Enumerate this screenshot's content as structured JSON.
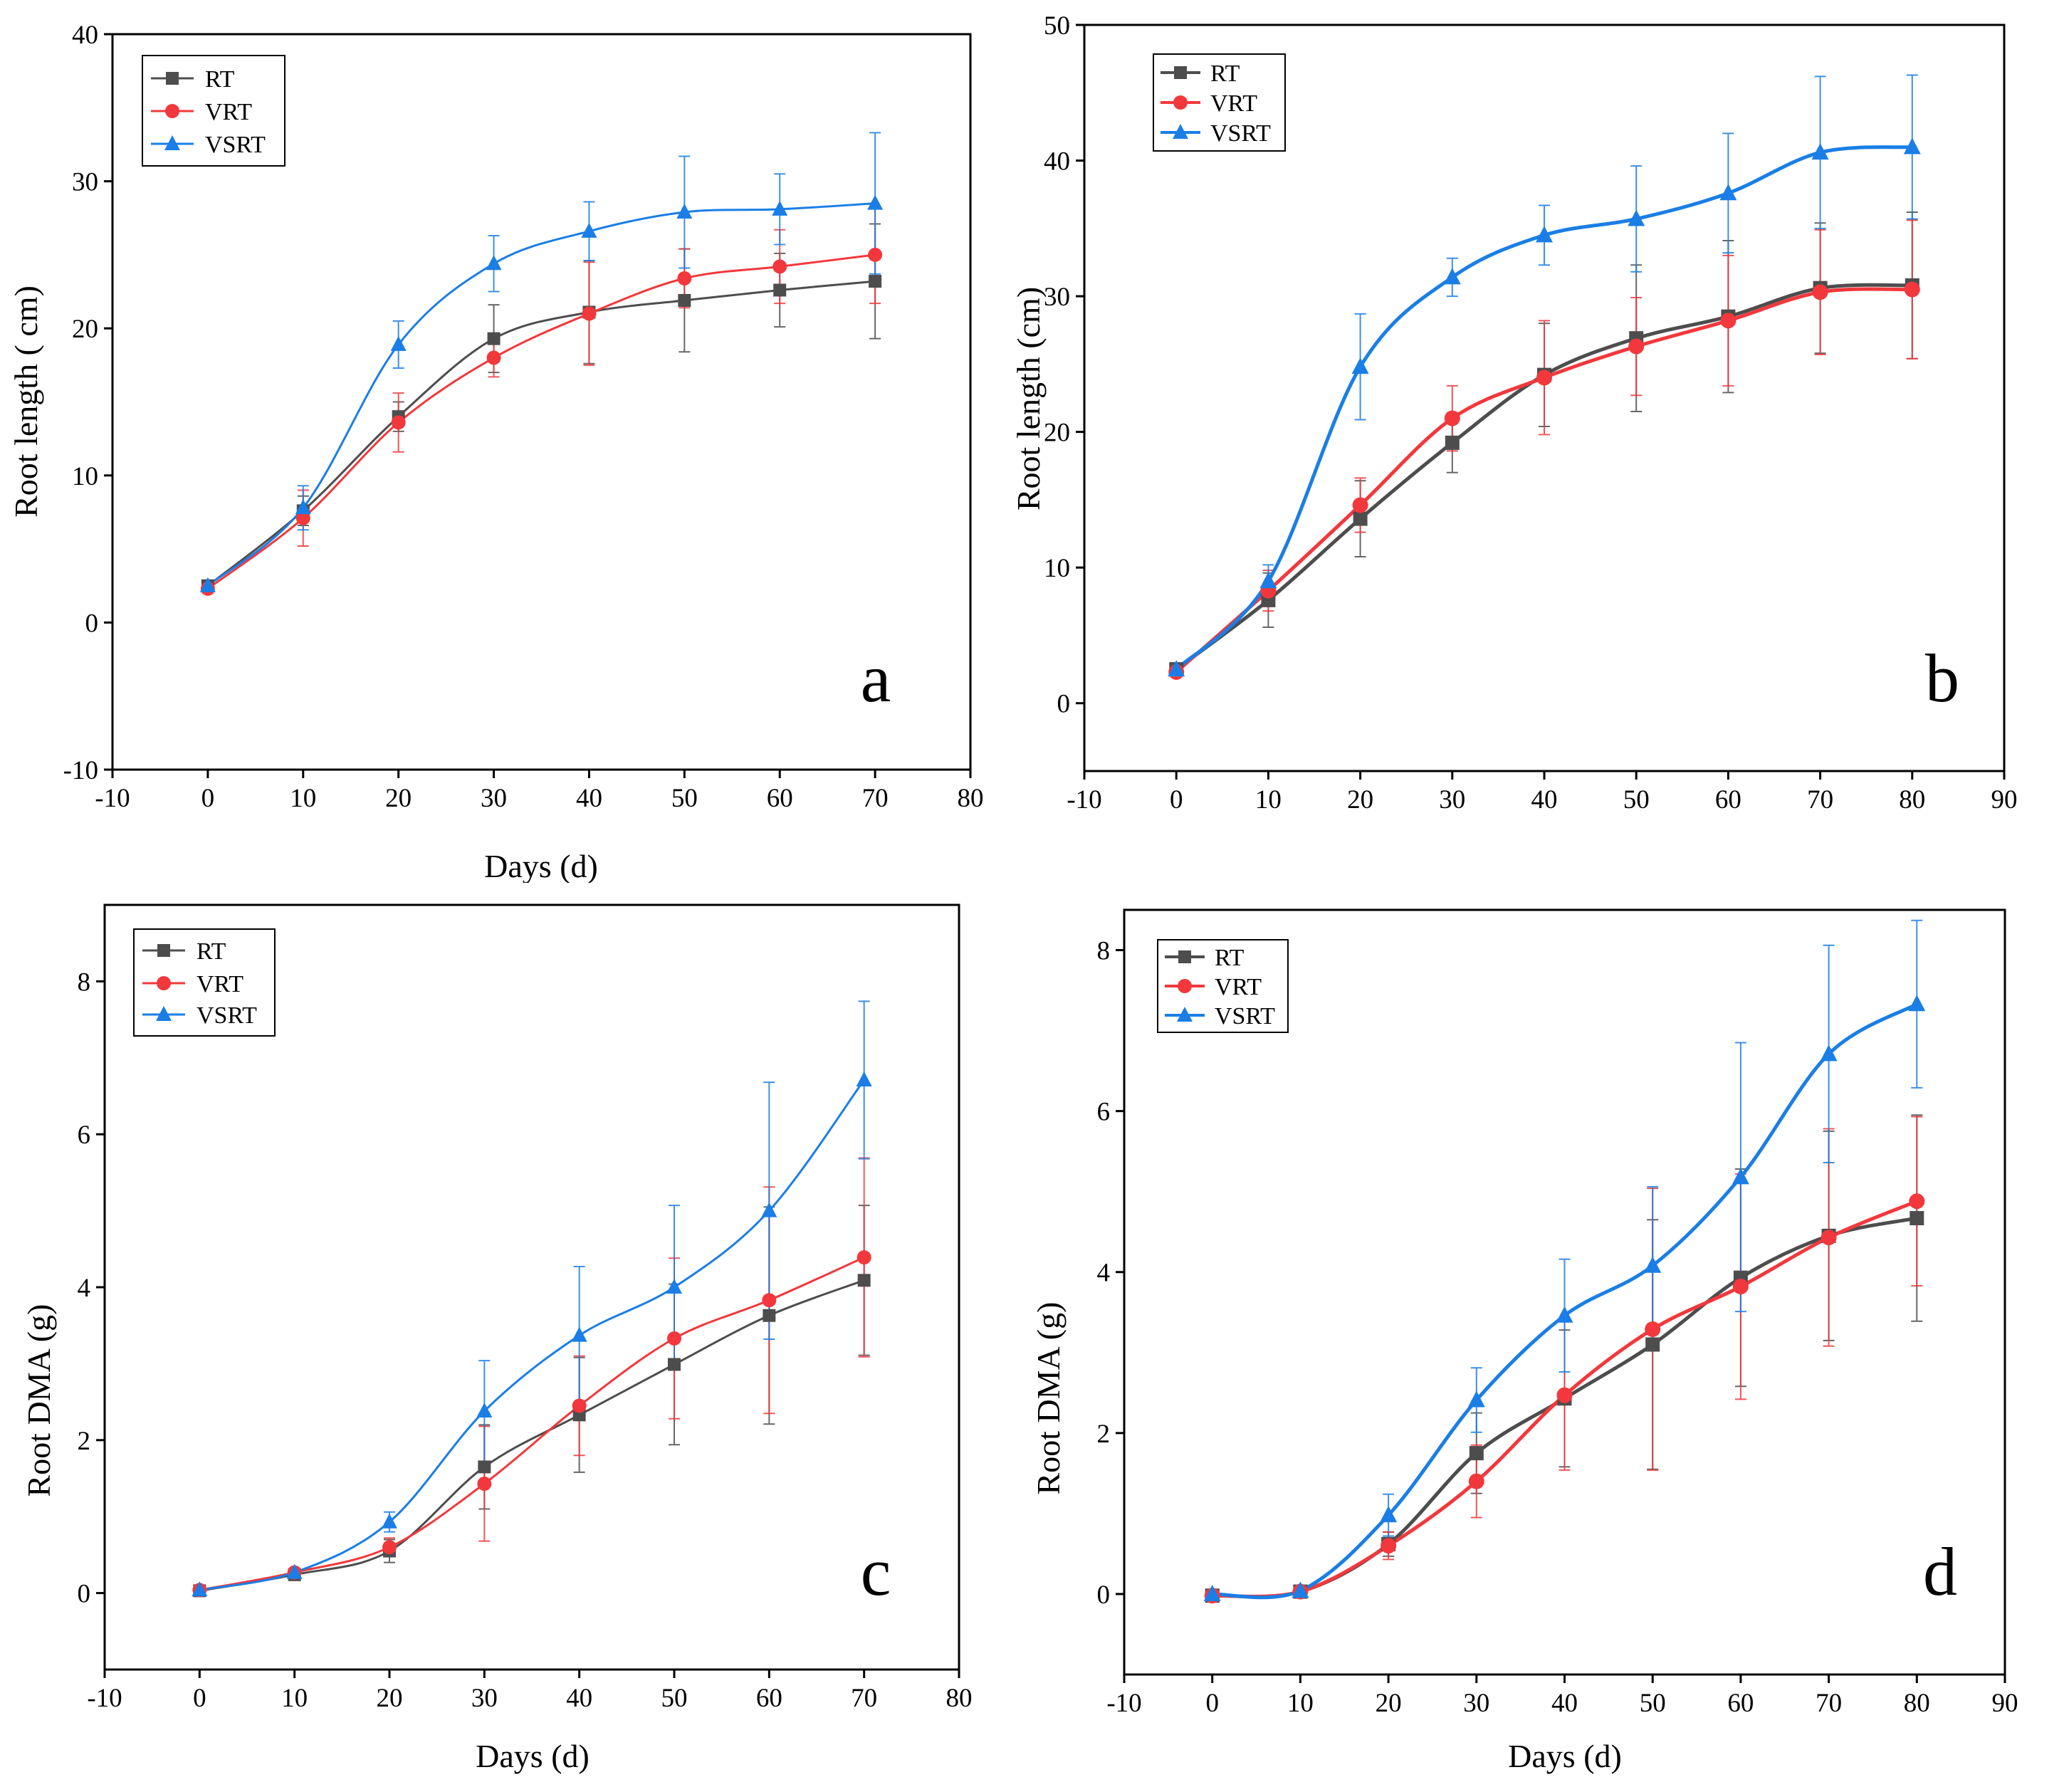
{
  "colors": {
    "RT": "#4d4d4d",
    "VRT": "#f2383c",
    "VSRT": "#1a7ee6"
  },
  "chart_data": [
    {
      "type": "line",
      "panel": "a",
      "xlabel": "Days (d)",
      "ylabel": "Root length ( cm)",
      "xlim": [
        -10,
        80
      ],
      "ylim": [
        -10,
        40
      ],
      "xticks": [
        -10,
        0,
        10,
        20,
        30,
        40,
        50,
        60,
        70,
        80
      ],
      "yticks": [
        -10,
        0,
        10,
        20,
        30,
        40
      ],
      "legend": [
        "RT",
        "VRT",
        "VSRT"
      ],
      "legend_position": "top-left",
      "x": [
        0,
        10,
        20,
        30,
        40,
        50,
        60,
        70
      ],
      "series": [
        {
          "name": "RT",
          "values": [
            2.5,
            7.6,
            14.0,
            19.3,
            21.1,
            21.9,
            22.6,
            23.2
          ],
          "errors": [
            0.3,
            1.0,
            1.0,
            2.3,
            3.5,
            3.5,
            2.5,
            3.9
          ]
        },
        {
          "name": "VRT",
          "values": [
            2.3,
            7.1,
            13.6,
            18.0,
            21.0,
            23.4,
            24.2,
            25.0
          ],
          "errors": [
            0.3,
            1.9,
            2.0,
            1.3,
            3.5,
            2.0,
            2.5,
            3.3
          ]
        },
        {
          "name": "VSRT",
          "values": [
            2.5,
            7.8,
            18.9,
            24.4,
            26.6,
            27.9,
            28.1,
            28.5
          ],
          "errors": [
            0.3,
            1.5,
            1.6,
            1.9,
            2.0,
            3.8,
            2.4,
            4.8
          ]
        }
      ]
    },
    {
      "type": "line",
      "panel": "b",
      "xlabel": "",
      "ylabel": "Root length (cm)",
      "xlim": [
        -10,
        90
      ],
      "ylim": [
        -5,
        50
      ],
      "xticks": [
        -10,
        0,
        10,
        20,
        30,
        40,
        50,
        60,
        70,
        80,
        90
      ],
      "yticks": [
        0,
        10,
        20,
        30,
        40,
        50
      ],
      "legend": [
        "RT",
        "VRT",
        "VSRT"
      ],
      "legend_position": "top-left",
      "x": [
        0,
        10,
        20,
        30,
        40,
        50,
        60,
        70,
        80
      ],
      "series": [
        {
          "name": "RT",
          "values": [
            2.5,
            7.6,
            13.6,
            19.2,
            24.2,
            26.9,
            28.5,
            30.6,
            30.8
          ],
          "errors": [
            0.3,
            2.0,
            2.8,
            2.2,
            3.8,
            5.4,
            5.6,
            4.8,
            5.4
          ]
        },
        {
          "name": "VRT",
          "values": [
            2.3,
            8.3,
            14.6,
            21.0,
            24.0,
            26.3,
            28.2,
            30.3,
            30.5
          ],
          "errors": [
            0.3,
            1.5,
            2.0,
            2.4,
            4.2,
            3.6,
            4.8,
            4.6,
            5.1
          ]
        },
        {
          "name": "VSRT",
          "values": [
            2.5,
            9.0,
            24.8,
            31.4,
            34.5,
            35.7,
            37.6,
            40.6,
            41.0
          ],
          "errors": [
            0.3,
            1.2,
            3.9,
            1.4,
            2.2,
            3.9,
            4.4,
            5.6,
            5.3
          ]
        }
      ]
    },
    {
      "type": "line",
      "panel": "c",
      "xlabel": "Days (d)",
      "ylabel": "Root DMA (g)",
      "xlim": [
        -10,
        80
      ],
      "ylim": [
        -1,
        9
      ],
      "xticks": [
        -10,
        0,
        10,
        20,
        30,
        40,
        50,
        60,
        70,
        80
      ],
      "yticks": [
        0,
        2,
        4,
        6,
        8
      ],
      "legend": [
        "RT",
        "VRT",
        "VSRT"
      ],
      "legend_position": "top-left",
      "x": [
        0,
        10,
        20,
        30,
        40,
        50,
        60,
        70
      ],
      "series": [
        {
          "name": "RT",
          "values": [
            0.03,
            0.24,
            0.55,
            1.65,
            2.33,
            2.99,
            3.63,
            4.09
          ],
          "errors": [
            0.02,
            0.05,
            0.15,
            0.55,
            0.75,
            1.05,
            1.42,
            0.98
          ]
        },
        {
          "name": "VRT",
          "values": [
            0.04,
            0.27,
            0.6,
            1.43,
            2.45,
            3.33,
            3.83,
            4.39
          ],
          "errors": [
            0.02,
            0.05,
            0.12,
            0.75,
            0.65,
            1.05,
            1.48,
            1.3
          ]
        },
        {
          "name": "VSRT",
          "values": [
            0.04,
            0.27,
            0.93,
            2.38,
            3.37,
            4.0,
            5.0,
            6.71
          ],
          "errors": [
            0.02,
            0.05,
            0.13,
            0.66,
            0.9,
            1.07,
            1.68,
            1.03
          ]
        }
      ]
    },
    {
      "type": "line",
      "panel": "d",
      "xlabel": "Days (d)",
      "ylabel": "Root DMA (g)",
      "xlim": [
        -10,
        90
      ],
      "ylim": [
        -1,
        8.5
      ],
      "xticks": [
        -10,
        0,
        10,
        20,
        30,
        40,
        50,
        60,
        70,
        80,
        90
      ],
      "yticks": [
        0,
        2,
        4,
        6,
        8
      ],
      "legend": [
        "RT",
        "VRT",
        "VSRT"
      ],
      "legend_position": "top-left",
      "x": [
        0,
        10,
        20,
        30,
        40,
        50,
        60,
        70,
        80
      ],
      "series": [
        {
          "name": "RT",
          "values": [
            -0.02,
            0.03,
            0.62,
            1.75,
            2.43,
            3.1,
            3.93,
            4.45,
            4.67
          ],
          "errors": [
            0.03,
            0.05,
            0.15,
            0.5,
            0.85,
            1.55,
            1.35,
            1.3,
            1.28
          ]
        },
        {
          "name": "VRT",
          "values": [
            -0.02,
            0.03,
            0.6,
            1.4,
            2.47,
            3.29,
            3.82,
            4.43,
            4.88
          ],
          "errors": [
            0.03,
            0.05,
            0.17,
            0.45,
            0.93,
            1.75,
            1.4,
            1.35,
            1.05
          ]
        },
        {
          "name": "VSRT",
          "values": [
            0.0,
            0.04,
            0.98,
            2.41,
            3.46,
            4.08,
            5.18,
            6.71,
            7.33
          ],
          "errors": [
            0.03,
            0.05,
            0.26,
            0.4,
            0.7,
            0.98,
            1.67,
            1.35,
            1.04
          ]
        }
      ]
    }
  ]
}
